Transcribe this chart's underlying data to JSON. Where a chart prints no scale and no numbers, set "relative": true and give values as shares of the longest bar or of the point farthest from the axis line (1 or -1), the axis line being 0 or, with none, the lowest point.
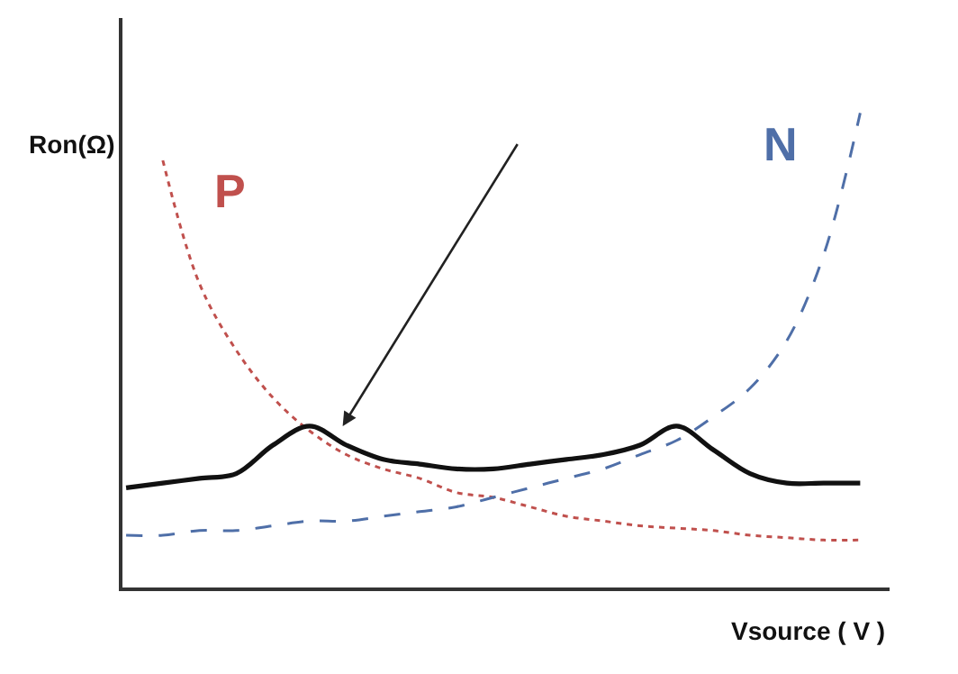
{
  "chart_data": {
    "type": "line",
    "relative": true,
    "xlabel": "Vsource ( V )",
    "ylabel": "Ron(Ω)",
    "categories": [
      null,
      null,
      null,
      null,
      null,
      null,
      null,
      null,
      null,
      null,
      null,
      null,
      null,
      null,
      null,
      null,
      null,
      null,
      null,
      null,
      null
    ],
    "series": [
      {
        "name": "P",
        "color": "#c0504d",
        "line_style": "dotted",
        "values": [
          null,
          0.9,
          0.64,
          0.5,
          0.4,
          0.33,
          0.28,
          0.25,
          0.23,
          0.2,
          0.19,
          0.17,
          0.15,
          0.14,
          0.13,
          0.125,
          0.12,
          0.11,
          0.105,
          0.1,
          0.1
        ]
      },
      {
        "name": "N",
        "color": "#4f6fa8",
        "line_style": "dashed",
        "values": [
          0.11,
          0.11,
          0.12,
          0.12,
          0.13,
          0.14,
          0.14,
          0.15,
          0.16,
          0.17,
          0.19,
          0.21,
          0.23,
          0.25,
          0.28,
          0.31,
          0.36,
          0.42,
          0.52,
          0.7,
          1.0
        ]
      },
      {
        "color": "#111111",
        "line_style": "solid",
        "values": [
          0.21,
          0.22,
          0.23,
          0.24,
          0.3,
          0.34,
          0.3,
          0.27,
          0.26,
          0.25,
          0.25,
          0.26,
          0.27,
          0.28,
          0.3,
          0.34,
          0.29,
          0.24,
          0.22,
          0.22,
          0.22
        ]
      }
    ],
    "legend": false,
    "tick_labels": false,
    "marker": "none"
  }
}
